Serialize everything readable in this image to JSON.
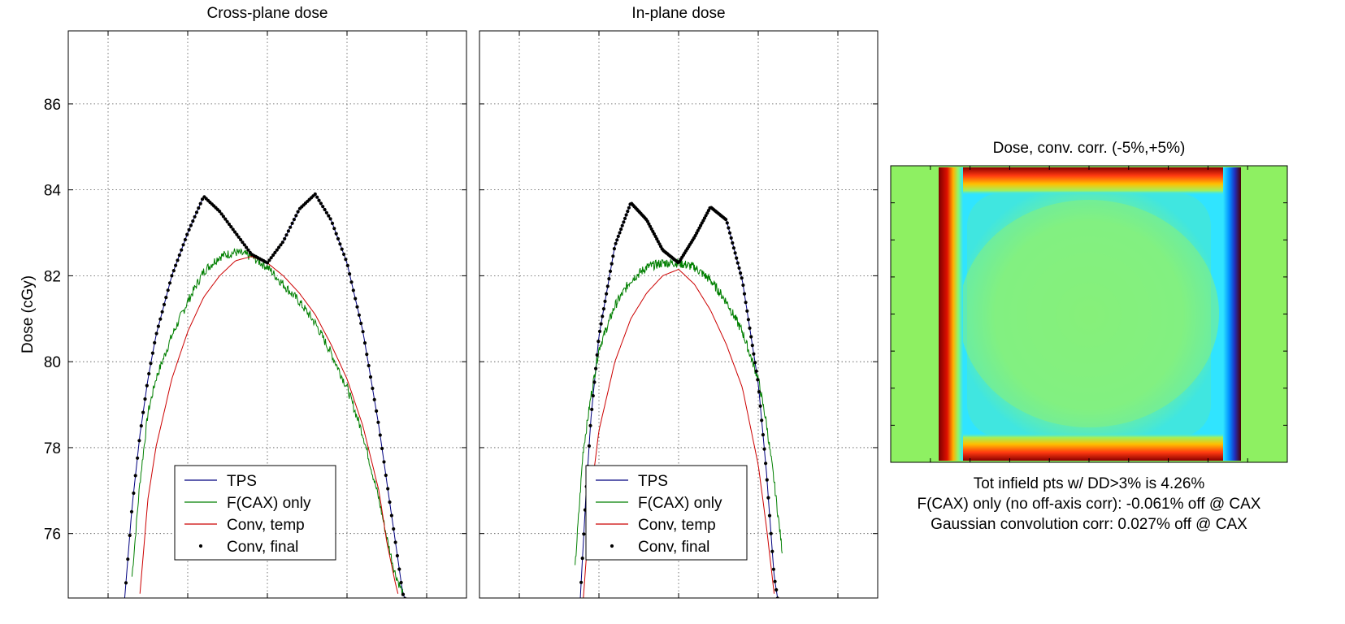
{
  "chart_data": [
    {
      "type": "line",
      "title": "Cross-plane dose",
      "ylabel": "Dose (cGy)",
      "xlabel": "",
      "xlim": [
        -1.25,
        1.25
      ],
      "ylim": [
        74.5,
        87.7
      ],
      "xticks": [
        -1,
        -0.5,
        0,
        0.5,
        1
      ],
      "yticks": [
        76,
        78,
        80,
        82,
        84,
        86
      ],
      "ytick_labels": [
        "76",
        "78",
        "80",
        "82",
        "84",
        "86"
      ],
      "grid": true,
      "legend": {
        "location": "bottom-center",
        "entries": [
          "TPS",
          "F(CAX) only",
          "Conv, temp",
          "Conv, final"
        ]
      },
      "series": [
        {
          "name": "TPS",
          "color": "#00007f",
          "style": "line",
          "x": [
            -0.9,
            -0.85,
            -0.8,
            -0.75,
            -0.7,
            -0.6,
            -0.5,
            -0.4,
            -0.3,
            -0.2,
            -0.1,
            0,
            0.1,
            0.2,
            0.3,
            0.4,
            0.5,
            0.6,
            0.7,
            0.8,
            0.85,
            0.9
          ],
          "y": [
            74.3,
            76.6,
            78.3,
            79.6,
            80.6,
            82.0,
            83.0,
            83.85,
            83.5,
            83.0,
            82.5,
            82.3,
            82.8,
            83.55,
            83.9,
            83.3,
            82.3,
            80.7,
            78.5,
            75.9,
            74.6,
            74.2
          ]
        },
        {
          "name": "F(CAX) only",
          "color": "#007f00",
          "style": "noisy",
          "x": [
            -0.85,
            -0.8,
            -0.75,
            -0.7,
            -0.6,
            -0.5,
            -0.4,
            -0.3,
            -0.2,
            -0.1,
            0,
            0.1,
            0.2,
            0.3,
            0.4,
            0.5,
            0.6,
            0.7,
            0.75,
            0.8,
            0.85
          ],
          "y": [
            75.0,
            77.2,
            78.8,
            79.6,
            80.6,
            81.4,
            82.1,
            82.45,
            82.55,
            82.45,
            82.2,
            81.8,
            81.4,
            80.9,
            80.2,
            79.4,
            78.3,
            76.8,
            75.9,
            75.1,
            74.6
          ]
        },
        {
          "name": "Conv, temp",
          "color": "#cc0000",
          "style": "line",
          "x": [
            -0.8,
            -0.75,
            -0.7,
            -0.6,
            -0.5,
            -0.4,
            -0.3,
            -0.2,
            -0.1,
            0,
            0.1,
            0.2,
            0.3,
            0.4,
            0.5,
            0.6,
            0.7,
            0.75,
            0.8,
            0.82
          ],
          "y": [
            74.6,
            76.8,
            78.0,
            79.6,
            80.7,
            81.5,
            82.0,
            82.35,
            82.45,
            82.3,
            82.0,
            81.6,
            81.1,
            80.4,
            79.6,
            78.5,
            77.0,
            75.8,
            74.9,
            74.6
          ]
        },
        {
          "name": "Conv, final",
          "color": "#000000",
          "style": "dots",
          "x": [
            -0.9,
            -0.85,
            -0.8,
            -0.75,
            -0.7,
            -0.6,
            -0.5,
            -0.4,
            -0.3,
            -0.2,
            -0.1,
            0,
            0.1,
            0.2,
            0.3,
            0.4,
            0.5,
            0.6,
            0.7,
            0.8,
            0.85,
            0.9
          ],
          "y": [
            74.3,
            76.6,
            78.3,
            79.6,
            80.6,
            82.0,
            83.0,
            83.85,
            83.5,
            83.0,
            82.5,
            82.3,
            82.8,
            83.55,
            83.9,
            83.3,
            82.3,
            80.7,
            78.5,
            75.9,
            74.6,
            74.2
          ]
        }
      ]
    },
    {
      "type": "line",
      "title": "In-plane dose",
      "ylabel": "",
      "xlabel": "",
      "xlim": [
        -1.25,
        1.25
      ],
      "ylim": [
        74.5,
        87.7
      ],
      "xticks": [
        -1,
        -0.5,
        0,
        0.5,
        1
      ],
      "yticks": [
        76,
        78,
        80,
        82,
        84,
        86
      ],
      "grid": true,
      "legend": {
        "location": "bottom-center",
        "entries": [
          "TPS",
          "F(CAX) only",
          "Conv, temp",
          "Conv, final"
        ]
      },
      "series": [
        {
          "name": "TPS",
          "color": "#00007f",
          "style": "line",
          "x": [
            -0.62,
            -0.58,
            -0.55,
            -0.5,
            -0.4,
            -0.3,
            -0.2,
            -0.1,
            0,
            0.1,
            0.2,
            0.3,
            0.4,
            0.5,
            0.55,
            0.6,
            0.63
          ],
          "y": [
            74.3,
            77.0,
            78.7,
            80.6,
            82.7,
            83.7,
            83.3,
            82.6,
            82.3,
            82.9,
            83.6,
            83.3,
            81.9,
            79.5,
            77.5,
            75.0,
            74.3
          ]
        },
        {
          "name": "F(CAX) only",
          "color": "#007f00",
          "style": "noisy",
          "x": [
            -0.65,
            -0.6,
            -0.55,
            -0.5,
            -0.4,
            -0.3,
            -0.2,
            -0.1,
            0,
            0.1,
            0.2,
            0.3,
            0.4,
            0.5,
            0.55,
            0.6,
            0.65
          ],
          "y": [
            75.2,
            77.9,
            79.2,
            80.3,
            81.3,
            81.9,
            82.2,
            82.3,
            82.3,
            82.2,
            81.9,
            81.4,
            80.7,
            79.6,
            78.6,
            77.2,
            75.6
          ]
        },
        {
          "name": "Conv, temp",
          "color": "#cc0000",
          "style": "line",
          "x": [
            -0.6,
            -0.55,
            -0.5,
            -0.4,
            -0.3,
            -0.2,
            -0.1,
            0,
            0.1,
            0.2,
            0.3,
            0.4,
            0.5,
            0.55,
            0.6
          ],
          "y": [
            74.4,
            76.9,
            78.4,
            80.0,
            81.0,
            81.6,
            82.0,
            82.15,
            81.8,
            81.2,
            80.4,
            79.4,
            77.6,
            76.2,
            74.6
          ]
        },
        {
          "name": "Conv, final",
          "color": "#000000",
          "style": "dots",
          "x": [
            -0.62,
            -0.58,
            -0.55,
            -0.5,
            -0.4,
            -0.3,
            -0.2,
            -0.1,
            0,
            0.1,
            0.2,
            0.3,
            0.4,
            0.5,
            0.55,
            0.6,
            0.63
          ],
          "y": [
            74.3,
            77.0,
            78.7,
            80.6,
            82.7,
            83.7,
            83.3,
            82.6,
            82.3,
            82.9,
            83.6,
            83.3,
            81.9,
            79.5,
            77.5,
            75.0,
            74.3
          ]
        }
      ]
    },
    {
      "type": "heatmap",
      "title": "Dose, conv. corr. (-5%,+5%)",
      "color_range": [
        "-5%",
        "+5%"
      ],
      "colormap": "jet",
      "colors": {
        "background": "#8ef062",
        "interior": "#66f0a0",
        "inner_band": "#30e4ff",
        "edge_hot": "#ff3a10",
        "edge_dark": "#7a0000",
        "edge_cold": "#22237a"
      }
    }
  ],
  "notes": [
    "Tot infield pts w/ DD>3% is 4.26%",
    "F(CAX) only (no off-axis corr): -0.061% off @ CAX",
    "Gaussian convolution corr: 0.027% off @ CAX"
  ]
}
